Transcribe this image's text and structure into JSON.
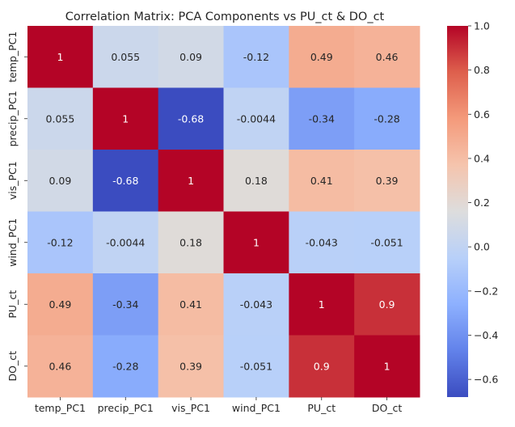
{
  "chart_data": {
    "type": "heatmap",
    "title": "Correlation Matrix: PCA Components vs PU_ct & DO_ct",
    "x_categories": [
      "temp_PC1",
      "precip_PC1",
      "vis_PC1",
      "wind_PC1",
      "PU_ct",
      "DO_ct"
    ],
    "y_categories": [
      "temp_PC1",
      "precip_PC1",
      "vis_PC1",
      "wind_PC1",
      "PU_ct",
      "DO_ct"
    ],
    "values": [
      [
        1,
        0.055,
        0.09,
        -0.12,
        0.49,
        0.46
      ],
      [
        0.055,
        1,
        -0.68,
        -0.0044,
        -0.34,
        -0.28
      ],
      [
        0.09,
        -0.68,
        1,
        0.18,
        0.41,
        0.39
      ],
      [
        -0.12,
        -0.0044,
        0.18,
        1,
        -0.043,
        -0.051
      ],
      [
        0.49,
        -0.34,
        0.41,
        -0.043,
        1,
        0.9
      ],
      [
        0.46,
        -0.28,
        0.39,
        -0.051,
        0.9,
        1
      ]
    ],
    "cell_labels": [
      [
        "1",
        "0.055",
        "0.09",
        "-0.12",
        "0.49",
        "0.46"
      ],
      [
        "0.055",
        "1",
        "-0.68",
        "-0.0044",
        "-0.34",
        "-0.28"
      ],
      [
        "0.09",
        "-0.68",
        "1",
        "0.18",
        "0.41",
        "0.39"
      ],
      [
        "-0.12",
        "-0.0044",
        "0.18",
        "1",
        "-0.043",
        "-0.051"
      ],
      [
        "0.49",
        "-0.34",
        "0.41",
        "-0.043",
        "1",
        "0.9"
      ],
      [
        "0.46",
        "-0.28",
        "0.39",
        "-0.051",
        "0.9",
        "1"
      ]
    ],
    "colormap": "coolwarm",
    "colorbar": {
      "vmin": -0.68,
      "vmax": 1,
      "ticks": [
        -0.6,
        -0.4,
        -0.2,
        0.0,
        0.2,
        0.4,
        0.6,
        0.8,
        1.0
      ],
      "tick_labels": [
        "−0.6",
        "−0.4",
        "−0.2",
        "0.0",
        "0.2",
        "0.4",
        "0.6",
        "0.8",
        "1.0"
      ]
    }
  }
}
